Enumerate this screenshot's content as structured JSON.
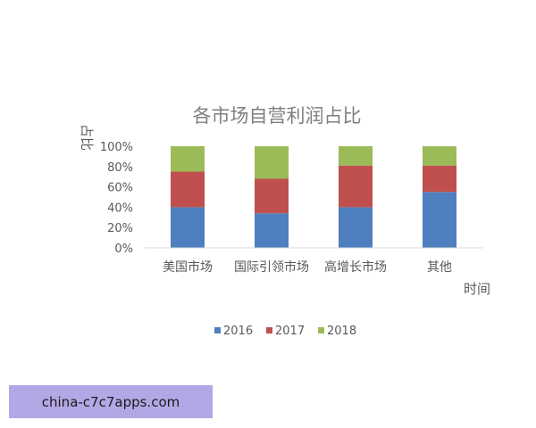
{
  "chart_data": {
    "type": "bar",
    "stacked": true,
    "title": "各市场自营利润占比",
    "xlabel": "时间",
    "ylabel": "占比",
    "categories": [
      "美国市场",
      "国际引领市场",
      "高增长市场",
      "其他"
    ],
    "series": [
      {
        "name": "2016",
        "color": "#4f7fbf",
        "values": [
          40,
          34,
          40,
          55
        ]
      },
      {
        "name": "2017",
        "color": "#c0504d",
        "values": [
          35,
          34,
          41,
          26
        ]
      },
      {
        "name": "2018",
        "color": "#9bbb59",
        "values": [
          25,
          32,
          19,
          19
        ]
      }
    ],
    "ylim": [
      0,
      100
    ],
    "yticks": [
      "0%",
      "20%",
      "40%",
      "60%",
      "80%",
      "100%"
    ],
    "grid": false,
    "legend_position": "bottom"
  },
  "watermark": {
    "text": "china-c7c7apps.com"
  }
}
